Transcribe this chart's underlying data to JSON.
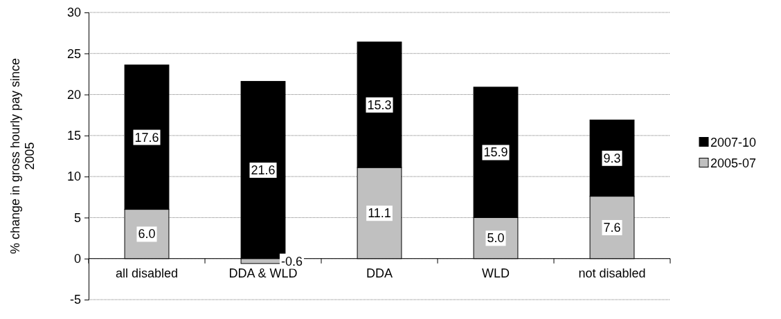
{
  "chart_data": {
    "type": "bar",
    "stacked": true,
    "categories": [
      "all disabled",
      "DDA & WLD",
      "DDA",
      "WLD",
      "not disabled"
    ],
    "series": [
      {
        "name": "2005-07",
        "color": "#c0c0c0",
        "values": [
          6.0,
          -0.6,
          11.1,
          5.0,
          7.6
        ],
        "value_labels": [
          "6.0",
          "-0.6",
          "11.1",
          "5.0",
          "7.6"
        ]
      },
      {
        "name": "2007-10",
        "color": "#000000",
        "values": [
          17.6,
          21.6,
          15.3,
          15.9,
          9.3
        ],
        "value_labels": [
          "17.6",
          "21.6",
          "15.3",
          "15.9",
          "9.3"
        ]
      }
    ],
    "ylabel": "% change in gross hourly pay since 2005",
    "ylim": [
      -5,
      30
    ],
    "yticks": [
      -5,
      0,
      5,
      10,
      15,
      20,
      25,
      30
    ],
    "grid": "y",
    "legend": "right"
  }
}
